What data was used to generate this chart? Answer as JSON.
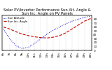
{
  "title": "Solar PV/Inverter Performance Sun Alt. Angle & Sun Inc. Angle on PV Panels",
  "background_color": "#ffffff",
  "grid_color": "#aaaaaa",
  "x": [
    6,
    7,
    8,
    9,
    10,
    11,
    12,
    13,
    14,
    15,
    16,
    17,
    18,
    19,
    20
  ],
  "sun_altitude": [
    55,
    30,
    12,
    5,
    8,
    18,
    30,
    42,
    52,
    60,
    68,
    75,
    80,
    85,
    88
  ],
  "sun_incidence": [
    60,
    55,
    48,
    42,
    38,
    35,
    33,
    32,
    34,
    38,
    45,
    55,
    65,
    75,
    82
  ],
  "altitude_color": "#0000cc",
  "incidence_color": "#cc0000",
  "ylim": [
    0,
    90
  ],
  "yticks_right": [
    0,
    10,
    20,
    30,
    40,
    50,
    60,
    70,
    80
  ],
  "xtick_labels": [
    "6h",
    "7h",
    "8h",
    "9h",
    "10h",
    "11h",
    "12h",
    "13h",
    "14h",
    "15h",
    "16h",
    "17h",
    "18h",
    "19h",
    "20h"
  ],
  "legend_altitude": "Sun Altitude",
  "legend_incidence": "Sun Inc. Angle",
  "title_fontsize": 3.8,
  "tick_fontsize": 3.0,
  "legend_fontsize": 2.8,
  "figsize": [
    1.6,
    1.0
  ],
  "dpi": 100
}
